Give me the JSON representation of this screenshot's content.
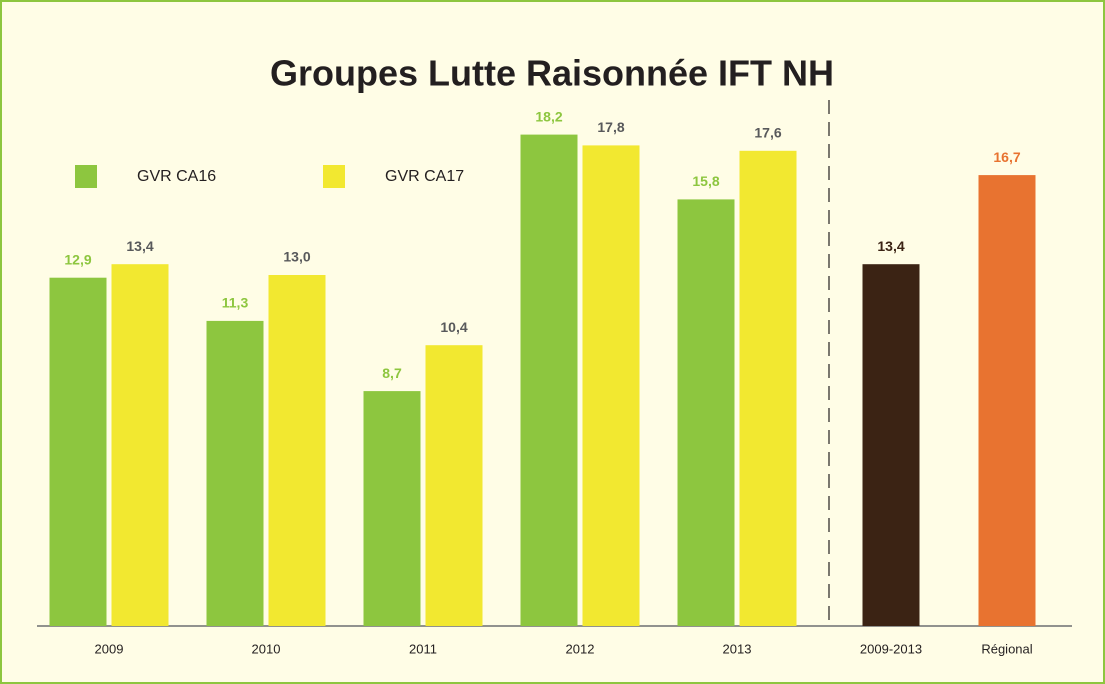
{
  "chart_data": {
    "type": "bar",
    "title": "Groupes Lutte Raisonnée IFT NH",
    "categories": [
      "2009",
      "2010",
      "2011",
      "2012",
      "2013",
      "2009-2013",
      "Régional"
    ],
    "series": [
      {
        "name": "GVR CA16",
        "color": "#8dc63f",
        "label_color": "#8dc63f",
        "values": [
          12.9,
          11.3,
          8.7,
          18.2,
          15.8,
          null,
          null
        ],
        "value_labels": [
          "12,9",
          "11,3",
          "8,7",
          "18,2",
          "15,8",
          null,
          null
        ]
      },
      {
        "name": "GVR CA17",
        "color": "#f2e830",
        "label_color": "#58595b",
        "values": [
          13.4,
          13.0,
          10.4,
          17.8,
          17.6,
          null,
          null
        ],
        "value_labels": [
          "13,4",
          "13,0",
          "10,4",
          "17,8",
          "17,6",
          null,
          null
        ]
      },
      {
        "color": "#3b2314",
        "label_color": "#3b2314",
        "values": [
          null,
          null,
          null,
          null,
          null,
          13.4,
          null
        ],
        "value_labels": [
          null,
          null,
          null,
          null,
          null,
          "13,4",
          null
        ]
      },
      {
        "color": "#e87330",
        "label_color": "#e87330",
        "values": [
          null,
          null,
          null,
          null,
          null,
          null,
          16.7
        ],
        "value_labels": [
          null,
          null,
          null,
          null,
          null,
          null,
          "16,7"
        ]
      }
    ]
  }
}
